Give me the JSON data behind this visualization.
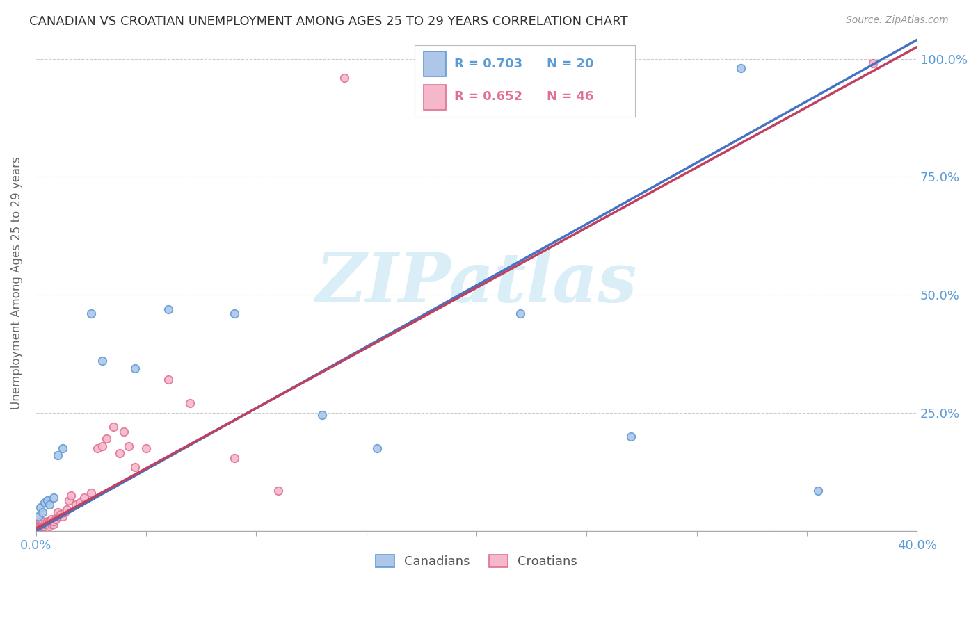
{
  "title": "CANADIAN VS CROATIAN UNEMPLOYMENT AMONG AGES 25 TO 29 YEARS CORRELATION CHART",
  "source": "Source: ZipAtlas.com",
  "ylabel": "Unemployment Among Ages 25 to 29 years",
  "xlim": [
    0.0,
    0.4
  ],
  "ylim": [
    0.0,
    1.05
  ],
  "canadian_color": "#aec6e8",
  "croatian_color": "#f5b8cb",
  "canadian_edge": "#5b9bd5",
  "croatian_edge": "#e07090",
  "regression_canadian_color": "#4472c4",
  "regression_croatian_color": "#c04060",
  "watermark": "ZIPatlas",
  "watermark_color": "#daeef8",
  "R_canadian": 0.703,
  "N_canadian": 20,
  "R_croatian": 0.652,
  "N_croatian": 46,
  "canadians_x": [
    0.001,
    0.002,
    0.003,
    0.004,
    0.005,
    0.006,
    0.008,
    0.01,
    0.012,
    0.025,
    0.03,
    0.045,
    0.06,
    0.09,
    0.13,
    0.155,
    0.22,
    0.27,
    0.32,
    0.355
  ],
  "canadians_y": [
    0.03,
    0.05,
    0.04,
    0.06,
    0.065,
    0.055,
    0.07,
    0.16,
    0.175,
    0.46,
    0.36,
    0.345,
    0.47,
    0.46,
    0.245,
    0.175,
    0.46,
    0.2,
    0.98,
    0.085
  ],
  "croatians_x": [
    0.001,
    0.001,
    0.002,
    0.002,
    0.002,
    0.003,
    0.003,
    0.003,
    0.004,
    0.004,
    0.005,
    0.005,
    0.006,
    0.006,
    0.007,
    0.007,
    0.008,
    0.008,
    0.009,
    0.01,
    0.01,
    0.011,
    0.012,
    0.013,
    0.014,
    0.015,
    0.016,
    0.018,
    0.02,
    0.022,
    0.025,
    0.028,
    0.03,
    0.032,
    0.035,
    0.038,
    0.04,
    0.042,
    0.045,
    0.05,
    0.06,
    0.07,
    0.09,
    0.11,
    0.14,
    0.38
  ],
  "croatians_y": [
    0.01,
    0.015,
    0.01,
    0.015,
    0.02,
    0.01,
    0.015,
    0.02,
    0.01,
    0.015,
    0.015,
    0.02,
    0.01,
    0.02,
    0.015,
    0.025,
    0.015,
    0.02,
    0.025,
    0.03,
    0.04,
    0.035,
    0.03,
    0.04,
    0.045,
    0.065,
    0.075,
    0.055,
    0.06,
    0.07,
    0.08,
    0.175,
    0.18,
    0.195,
    0.22,
    0.165,
    0.21,
    0.18,
    0.135,
    0.175,
    0.32,
    0.27,
    0.155,
    0.085,
    0.96,
    0.99
  ],
  "background_color": "#ffffff",
  "grid_color": "#cccccc",
  "axis_label_color": "#5b9bd5",
  "title_color": "#333333",
  "marker_size": 70,
  "legend_canadian_color": "#5b9bd5",
  "legend_croatian_color": "#e07090",
  "reg_line_intercept_canadian": 0.0,
  "reg_line_slope_canadian": 2.6,
  "reg_line_intercept_croatian": 0.005,
  "reg_line_slope_croatian": 2.55
}
